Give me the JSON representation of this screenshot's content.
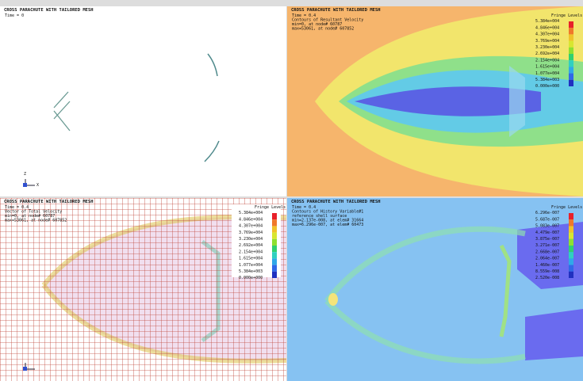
{
  "panels": [
    {
      "title": "CROSS PARACHUTE WITH TAILORED MESH",
      "lines": [
        "Time =        0"
      ],
      "axis_labels": [
        "Z",
        "X"
      ]
    },
    {
      "title": "CROSS PARACHUTE WITH TAILORED MESH",
      "lines": [
        "Time =       0.4",
        "Contours of Resultant Velocity",
        "min=0, at node# 60787",
        "max=53061, at node# 607852"
      ],
      "fringe_title": "Fringe Levels",
      "fringe_levels": [
        "5.384e+004",
        "4.846e+004",
        "4.307e+004",
        "3.769e+004",
        "3.230e+004",
        "2.692e+004",
        "2.154e+004",
        "1.615e+004",
        "1.077e+004",
        "5.384e+003",
        "0.000e+000"
      ]
    },
    {
      "title": "CROSS PARACHUTE WITH TAILORED MESH",
      "lines": [
        "Time =       0.4",
        "Vector of Total Velocity",
        "min=0, at node# 60787",
        "max=53061, at node# 607852"
      ],
      "fringe_title": "Fringe Levels",
      "fringe_levels": [
        "5.384e+004",
        "4.846e+004",
        "4.307e+004",
        "3.769e+004",
        "3.230e+004",
        "2.692e+004",
        "2.154e+004",
        "1.615e+004",
        "1.077e+004",
        "5.384e+003",
        "0.000e+000"
      ]
    },
    {
      "title": "CROSS PARACHUTE WITH TAILORED MESH",
      "lines": [
        "Time =       0.4",
        "Contours of History Variable#1",
        "reference shell surface",
        "min=2.137e-008, at elem# 31664",
        "max=6.296e-007, at elem# 60473"
      ],
      "fringe_title": "Fringe Levels",
      "fringe_levels": [
        "6.296e-007",
        "5.687e-007",
        "5.083e-007",
        "4.479e-007",
        "3.875e-007",
        "3.271e-007",
        "2.668e-007",
        "2.064e-007",
        "1.460e-007",
        "8.559e-008",
        "2.520e-008"
      ]
    }
  ]
}
